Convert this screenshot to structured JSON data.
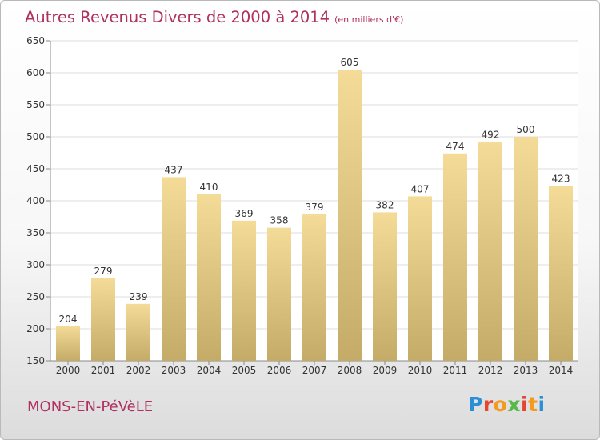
{
  "page": {
    "title": "Autres Revenus Divers de 2000 à 2014",
    "subtitle": "(en milliers d'€)",
    "commune": "MONS-EN-PéVèLE",
    "logo": {
      "letters": [
        "P",
        "r",
        "o",
        "x",
        "i",
        "t",
        "i"
      ],
      "colors": [
        "#2b8fd8",
        "#e5462f",
        "#f29b1f",
        "#58b84a",
        "#e5462f",
        "#f29b1f",
        "#2b8fd8"
      ]
    }
  },
  "chart_data": {
    "type": "bar",
    "title": "Autres Revenus Divers de 2000 à 2014",
    "subtitle": "(en milliers d'€)",
    "categories": [
      "2000",
      "2001",
      "2002",
      "2003",
      "2004",
      "2005",
      "2006",
      "2007",
      "2008",
      "2009",
      "2010",
      "2011",
      "2012",
      "2013",
      "2014"
    ],
    "values": [
      204,
      279,
      239,
      437,
      410,
      369,
      358,
      379,
      605,
      382,
      407,
      474,
      492,
      500,
      423
    ],
    "ylim": [
      150,
      650
    ],
    "yticks": [
      150,
      200,
      250,
      300,
      350,
      400,
      450,
      500,
      550,
      600,
      650
    ],
    "grid": true,
    "bar_color_top": "#f4dc98",
    "bar_color_bottom": "#c4ab67"
  }
}
